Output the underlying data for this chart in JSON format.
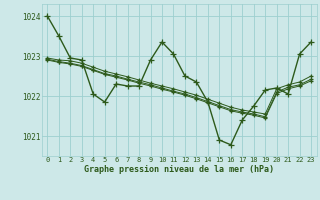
{
  "title": "Graphe pression niveau de la mer (hPa)",
  "bg_color": "#cde8e8",
  "line_color": "#2d5a1b",
  "grid_color": "#9dcfcf",
  "xlim": [
    -0.5,
    23.5
  ],
  "ylim": [
    1020.5,
    1024.3
  ],
  "yticks": [
    1021,
    1022,
    1023,
    1024
  ],
  "xticks": [
    0,
    1,
    2,
    3,
    4,
    5,
    6,
    7,
    8,
    9,
    10,
    11,
    12,
    13,
    14,
    15,
    16,
    17,
    18,
    19,
    20,
    21,
    22,
    23
  ],
  "series": [
    [
      1024.0,
      1023.5,
      1022.95,
      1022.9,
      1022.05,
      1021.85,
      1022.3,
      1022.25,
      1022.25,
      1022.9,
      1023.35,
      1023.05,
      1022.5,
      1022.35,
      1021.85,
      1020.9,
      1020.78,
      1021.4,
      1021.75,
      1022.15,
      1022.2,
      1022.05,
      1023.05,
      1023.35
    ],
    [
      1022.95,
      1022.9,
      1022.88,
      1022.82,
      1022.72,
      1022.62,
      1022.55,
      1022.48,
      1022.4,
      1022.32,
      1022.25,
      1022.18,
      1022.1,
      1022.02,
      1021.92,
      1021.82,
      1021.72,
      1021.65,
      1021.6,
      1021.55,
      1022.18,
      1022.28,
      1022.35,
      1022.5
    ],
    [
      1022.92,
      1022.86,
      1022.82,
      1022.76,
      1022.66,
      1022.56,
      1022.5,
      1022.42,
      1022.35,
      1022.28,
      1022.2,
      1022.12,
      1022.05,
      1021.96,
      1021.86,
      1021.76,
      1021.66,
      1021.6,
      1021.55,
      1021.48,
      1022.1,
      1022.22,
      1022.28,
      1022.42
    ],
    [
      1022.9,
      1022.84,
      1022.8,
      1022.74,
      1022.64,
      1022.54,
      1022.47,
      1022.4,
      1022.32,
      1022.25,
      1022.17,
      1022.1,
      1022.02,
      1021.93,
      1021.83,
      1021.73,
      1021.63,
      1021.57,
      1021.52,
      1021.45,
      1022.06,
      1022.18,
      1022.25,
      1022.38
    ]
  ]
}
